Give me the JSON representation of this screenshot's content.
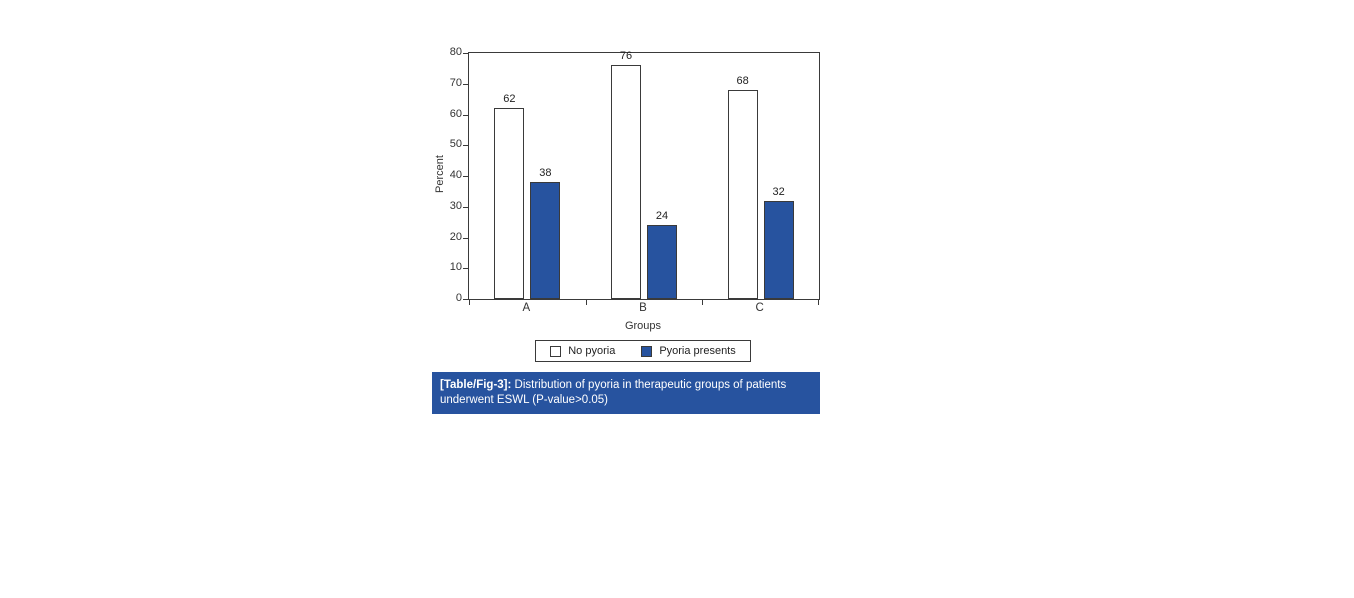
{
  "chart_data": {
    "type": "bar",
    "categories": [
      "A",
      "B",
      "C"
    ],
    "series": [
      {
        "name": "No pyoria",
        "color": "#ffffff",
        "values": [
          62,
          76,
          68
        ]
      },
      {
        "name": "Pyoria presents",
        "color": "#27539f",
        "values": [
          38,
          24,
          32
        ]
      }
    ],
    "title": "",
    "xlabel": "Groups",
    "ylabel": "Percent",
    "ylim": [
      0,
      80
    ],
    "ytick_step": 10,
    "grid": false,
    "legend_position": "bottom"
  },
  "caption": {
    "label": "[Table/Fig-3]:",
    "text": " Distribution of pyoria in therapeutic groups of patients underwent ESWL (P-value>0.05)",
    "bg_color": "#27539f",
    "text_color": "#ffffff"
  }
}
